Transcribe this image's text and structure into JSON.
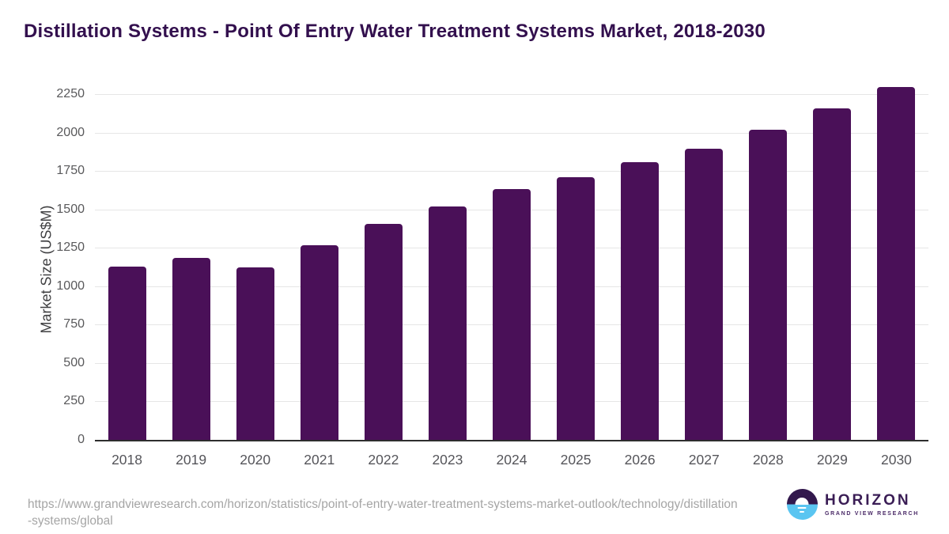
{
  "title": "Distillation Systems - Point Of Entry Water Treatment Systems Market, 2018-2030",
  "chart_data": {
    "type": "bar",
    "categories": [
      "2018",
      "2019",
      "2020",
      "2021",
      "2022",
      "2023",
      "2024",
      "2025",
      "2026",
      "2027",
      "2028",
      "2029",
      "2030"
    ],
    "values": [
      1130,
      1185,
      1125,
      1265,
      1405,
      1520,
      1630,
      1710,
      1805,
      1895,
      2020,
      2155,
      2295
    ],
    "title": "Distillation Systems - Point Of Entry Water Treatment Systems Market, 2018-2030",
    "xlabel": "",
    "ylabel": "Market Size (US$M)",
    "ylim": [
      0,
      2250
    ],
    "ytick_step": 250,
    "grid": true,
    "legend": false,
    "bar_color": "#4a1058"
  },
  "colors": {
    "title_text": "#33104e",
    "bar": "#4a1058",
    "gridline": "#e6e6e6",
    "axis_line": "#2e2e2e",
    "tick_text": "#59595b",
    "url_text": "#a5a5a5",
    "logo_purple": "#32184d",
    "logo_blue": "#5ac5f1"
  },
  "footer": {
    "source_url": "https://www.grandviewresearch.com/horizon/statistics/point-of-entry-water-treatment-systems-market-outlook/technology/distillation-systems/global",
    "logo": {
      "brand": "HORIZON",
      "tagline": "GRAND VIEW RESEARCH",
      "icon": "horizon-sun-circle-icon"
    }
  }
}
